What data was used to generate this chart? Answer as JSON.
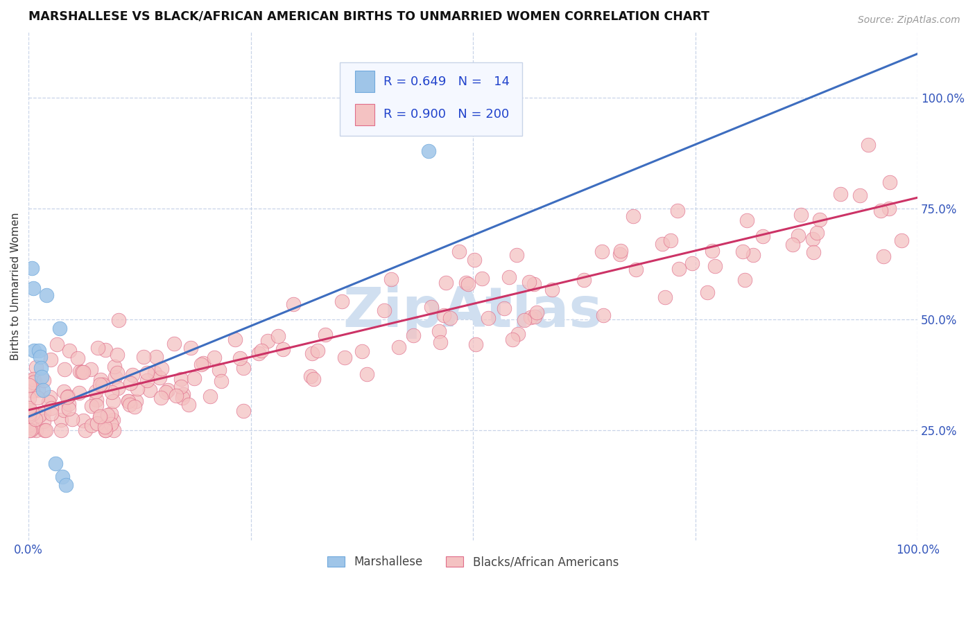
{
  "title": "MARSHALLESE VS BLACK/AFRICAN AMERICAN BIRTHS TO UNMARRIED WOMEN CORRELATION CHART",
  "source": "Source: ZipAtlas.com",
  "ylabel": "Births to Unmarried Women",
  "xlim": [
    0.0,
    1.0
  ],
  "ylim": [
    0.0,
    1.15
  ],
  "right_ytick_vals": [
    0.25,
    0.5,
    0.75,
    1.0
  ],
  "right_yticklabels": [
    "25.0%",
    "50.0%",
    "75.0%",
    "100.0%"
  ],
  "blue_color": "#9fc5e8",
  "blue_edge": "#6fa8dc",
  "pink_color": "#f4c2c2",
  "pink_edge": "#e06c8a",
  "trend_blue": "#3d6dbf",
  "trend_pink": "#cc3366",
  "grid_color": "#c8d4e8",
  "watermark": "ZipAtlas",
  "watermark_color": "#d0dff0",
  "legend_box_color": "#f5f8ff",
  "legend_border": "#c8d4e8",
  "blue_x": [
    0.004,
    0.005,
    0.006,
    0.012,
    0.013,
    0.014,
    0.015,
    0.016,
    0.02,
    0.03,
    0.035,
    0.038,
    0.042,
    0.45
  ],
  "blue_y": [
    0.615,
    0.57,
    0.43,
    0.43,
    0.415,
    0.39,
    0.37,
    0.34,
    0.555,
    0.175,
    0.48,
    0.145,
    0.125,
    0.88
  ],
  "blue_trend_x": [
    0.0,
    1.0
  ],
  "blue_trend_y": [
    0.28,
    1.1
  ],
  "pink_trend_x": [
    0.0,
    1.0
  ],
  "pink_trend_y": [
    0.295,
    0.775
  ]
}
